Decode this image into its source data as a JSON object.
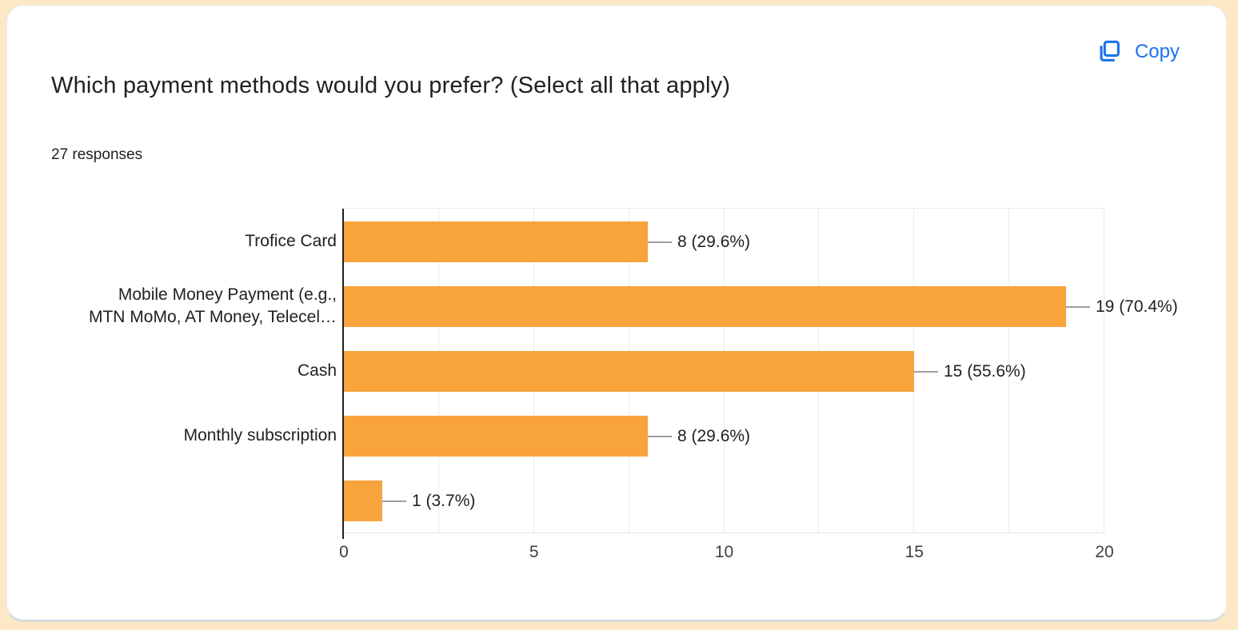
{
  "card": {
    "title": "Which payment methods would you prefer? (Select all that apply)",
    "responses_count": "27 responses",
    "copy_button": {
      "label": "Copy",
      "color": "#1a73e8"
    }
  },
  "chart_data": {
    "type": "bar",
    "orientation": "horizontal",
    "categories": [
      "Trofice Card",
      "Mobile Money Payment (e.g.,\nMTN MoMo, AT Money, Telecel…",
      "Cash",
      "Monthly subscription",
      ""
    ],
    "values": [
      8,
      19,
      15,
      8,
      1
    ],
    "data_labels": [
      "8 (29.6%)",
      "19 (70.4%)",
      "15 (55.6%)",
      "8 (29.6%)",
      "1 (3.7%)"
    ],
    "percentages": [
      29.6,
      70.4,
      55.6,
      29.6,
      3.7
    ],
    "total_responses": 27,
    "xlim": [
      0,
      20
    ],
    "x_ticks": [
      "0",
      "5",
      "10",
      "15",
      "20"
    ],
    "gridline_step": 2.5,
    "grid": "vertical-light",
    "legend": "none",
    "bar_color": "#F8A33C",
    "axis_color": "#212121",
    "leader_line_color": "#9e9e9e"
  }
}
